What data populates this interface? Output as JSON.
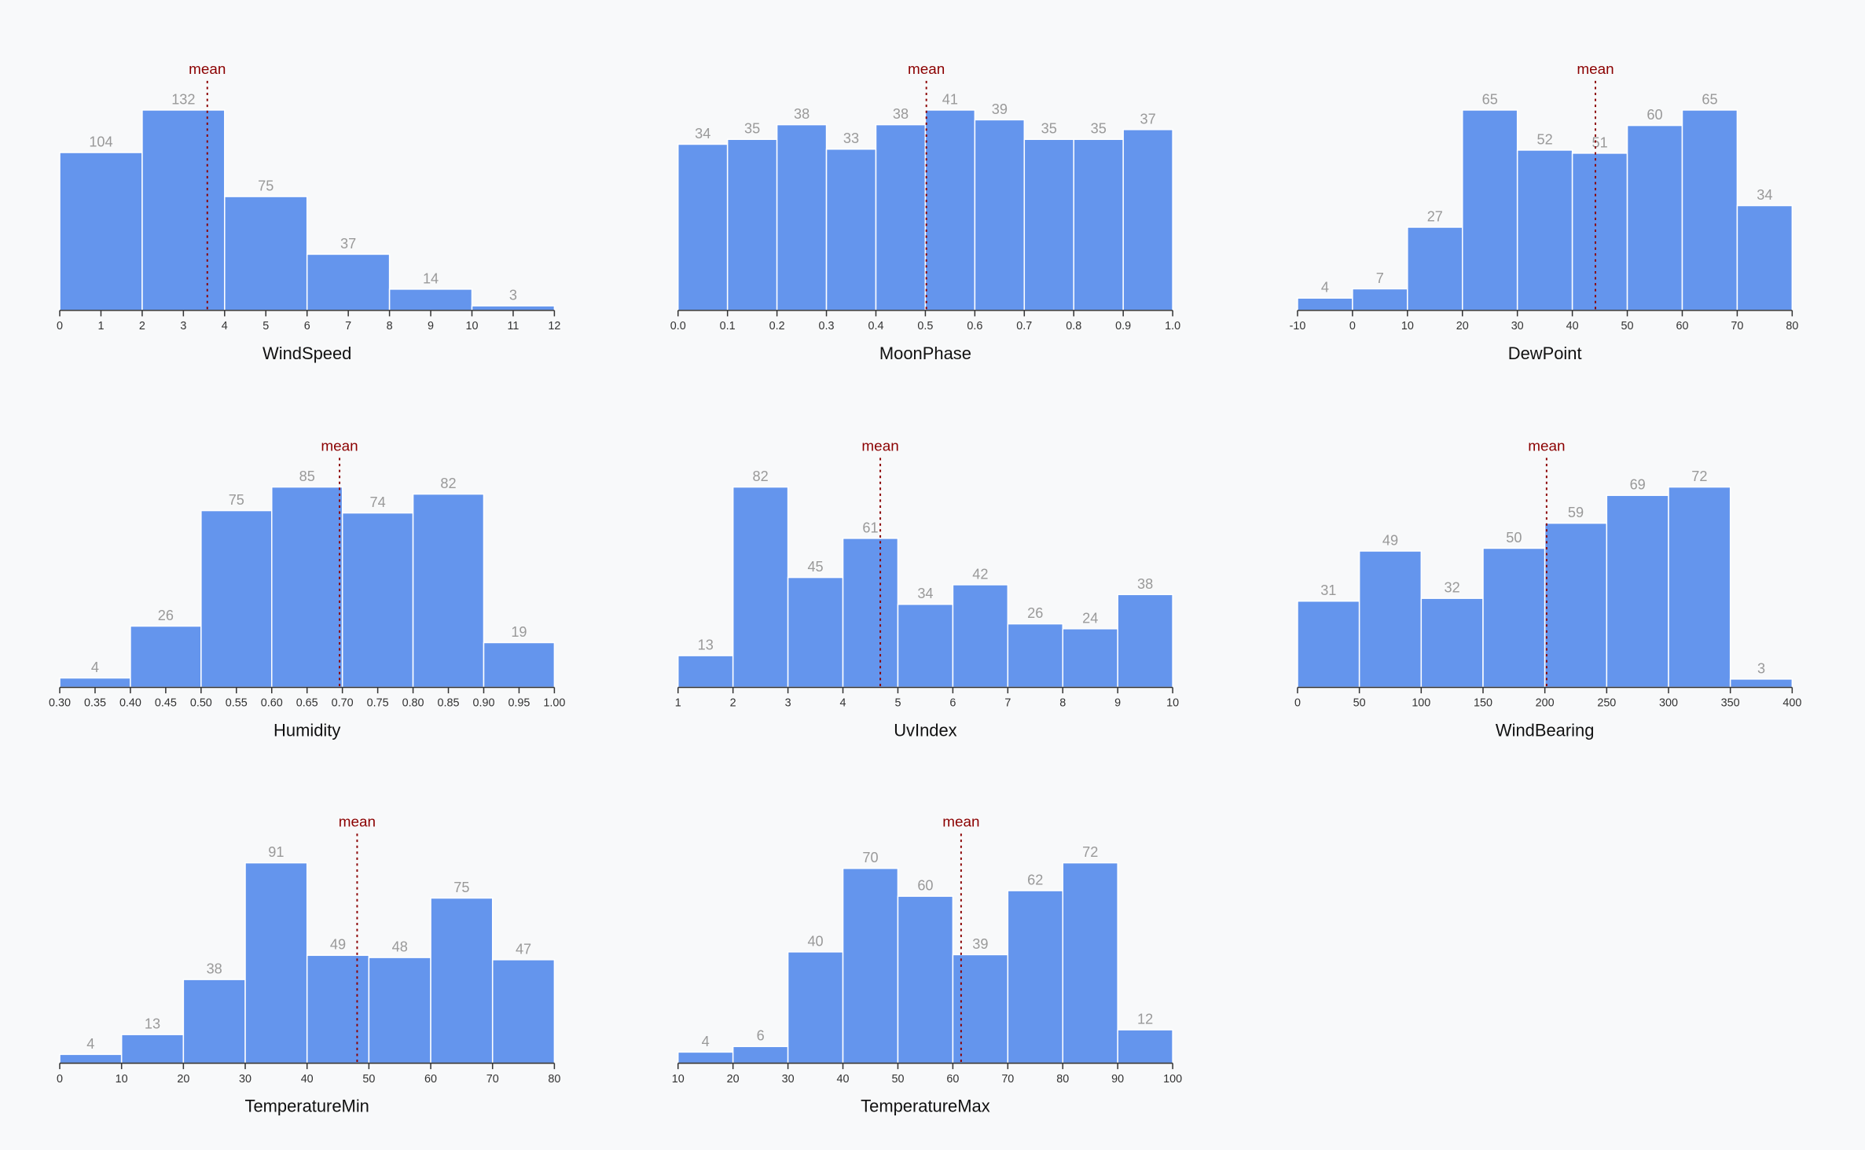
{
  "chart_data": [
    {
      "type": "histogram",
      "x_label": "WindSpeed",
      "bins": [
        0,
        2,
        4,
        6,
        8,
        10,
        12
      ],
      "values": [
        104,
        132,
        75,
        37,
        14,
        3
      ],
      "color": "#6495ed",
      "xlim": [
        0,
        12
      ],
      "xticks": [
        0,
        1,
        2,
        3,
        4,
        5,
        6,
        7,
        8,
        9,
        10,
        11,
        12
      ],
      "mean": 3.58,
      "mean_label": "mean",
      "mean_color": "#8b0000"
    },
    {
      "type": "histogram",
      "x_label": "MoonPhase",
      "bins": [
        0,
        0.1,
        0.2,
        0.3,
        0.4,
        0.5,
        0.6,
        0.7,
        0.8,
        0.9,
        1
      ],
      "values": [
        34,
        35,
        38,
        33,
        38,
        41,
        39,
        35,
        35,
        37
      ],
      "color": "#6495ed",
      "xlim": [
        0,
        1
      ],
      "xticks": [
        {
          "value": 0,
          "label": "0.0"
        },
        0.1,
        0.2,
        0.3,
        0.4,
        0.5,
        0.6,
        0.7,
        0.8,
        0.9,
        {
          "value": 1,
          "label": "1.0"
        }
      ],
      "mean": 0.502,
      "mean_label": "mean",
      "mean_color": "#8b0000"
    },
    {
      "type": "histogram",
      "x_label": "DewPoint",
      "bins": [
        -10,
        0,
        10,
        20,
        30,
        40,
        50,
        60,
        70,
        80
      ],
      "values": [
        4,
        7,
        27,
        65,
        52,
        51,
        60,
        65,
        34
      ],
      "color": "#6495ed",
      "xlim": [
        -10,
        80
      ],
      "xticks": [
        -10,
        0,
        10,
        20,
        30,
        40,
        50,
        60,
        70,
        80
      ],
      "mean": 44.2,
      "mean_label": "mean",
      "mean_color": "#8b0000"
    },
    {
      "type": "histogram",
      "x_label": "Humidity",
      "bins": [
        0.3,
        0.4,
        0.5,
        0.6,
        0.7,
        0.8,
        0.9,
        1
      ],
      "values": [
        4,
        26,
        75,
        85,
        74,
        82,
        19
      ],
      "color": "#6495ed",
      "xlim": [
        0.3,
        1
      ],
      "xticks": [
        {
          "value": 0.3,
          "label": "0.30"
        },
        {
          "value": 0.35,
          "label": "0.35"
        },
        {
          "value": 0.4,
          "label": "0.40"
        },
        {
          "value": 0.45,
          "label": "0.45"
        },
        {
          "value": 0.5,
          "label": "0.50"
        },
        {
          "value": 0.55,
          "label": "0.55"
        },
        {
          "value": 0.6,
          "label": "0.60"
        },
        {
          "value": 0.65,
          "label": "0.65"
        },
        {
          "value": 0.7,
          "label": "0.70"
        },
        {
          "value": 0.75,
          "label": "0.75"
        },
        {
          "value": 0.8,
          "label": "0.80"
        },
        {
          "value": 0.85,
          "label": "0.85"
        },
        {
          "value": 0.9,
          "label": "0.90"
        },
        {
          "value": 0.95,
          "label": "0.95"
        },
        {
          "value": 1,
          "label": "1.00"
        }
      ],
      "mean": 0.696,
      "mean_label": "mean",
      "mean_color": "#8b0000"
    },
    {
      "type": "histogram",
      "x_label": "UvIndex",
      "bins": [
        1,
        2,
        3,
        4,
        5,
        6,
        7,
        8,
        9,
        10
      ],
      "values": [
        13,
        82,
        45,
        61,
        34,
        42,
        26,
        24,
        38
      ],
      "color": "#6495ed",
      "xlim": [
        1,
        10
      ],
      "xticks": [
        1,
        2,
        3,
        4,
        5,
        6,
        7,
        8,
        9,
        10
      ],
      "mean": 4.68,
      "mean_label": "mean",
      "mean_color": "#8b0000"
    },
    {
      "type": "histogram",
      "x_label": "WindBearing",
      "bins": [
        0,
        50,
        100,
        150,
        200,
        250,
        300,
        350,
        400
      ],
      "values": [
        31,
        49,
        32,
        50,
        59,
        69,
        72,
        3
      ],
      "color": "#6495ed",
      "xlim": [
        0,
        400
      ],
      "xticks": [
        0,
        50,
        100,
        150,
        200,
        250,
        300,
        350,
        400
      ],
      "mean": 201.4,
      "mean_label": "mean",
      "mean_color": "#8b0000"
    },
    {
      "type": "histogram",
      "x_label": "TemperatureMin",
      "bins": [
        0,
        10,
        20,
        30,
        40,
        50,
        60,
        70,
        80
      ],
      "values": [
        4,
        13,
        38,
        91,
        49,
        48,
        75,
        47
      ],
      "color": "#6495ed",
      "xlim": [
        0,
        80
      ],
      "xticks": [
        0,
        10,
        20,
        30,
        40,
        50,
        60,
        70,
        80
      ],
      "mean": 48.1,
      "mean_label": "mean",
      "mean_color": "#8b0000"
    },
    {
      "type": "histogram",
      "x_label": "TemperatureMax",
      "bins": [
        10,
        20,
        30,
        40,
        50,
        60,
        70,
        80,
        90,
        100
      ],
      "values": [
        4,
        6,
        40,
        70,
        60,
        39,
        62,
        72,
        12
      ],
      "color": "#6495ed",
      "xlim": [
        10,
        100
      ],
      "xticks": [
        10,
        20,
        30,
        40,
        50,
        60,
        70,
        80,
        90,
        100
      ],
      "mean": 61.5,
      "mean_label": "mean",
      "mean_color": "#8b0000"
    }
  ]
}
